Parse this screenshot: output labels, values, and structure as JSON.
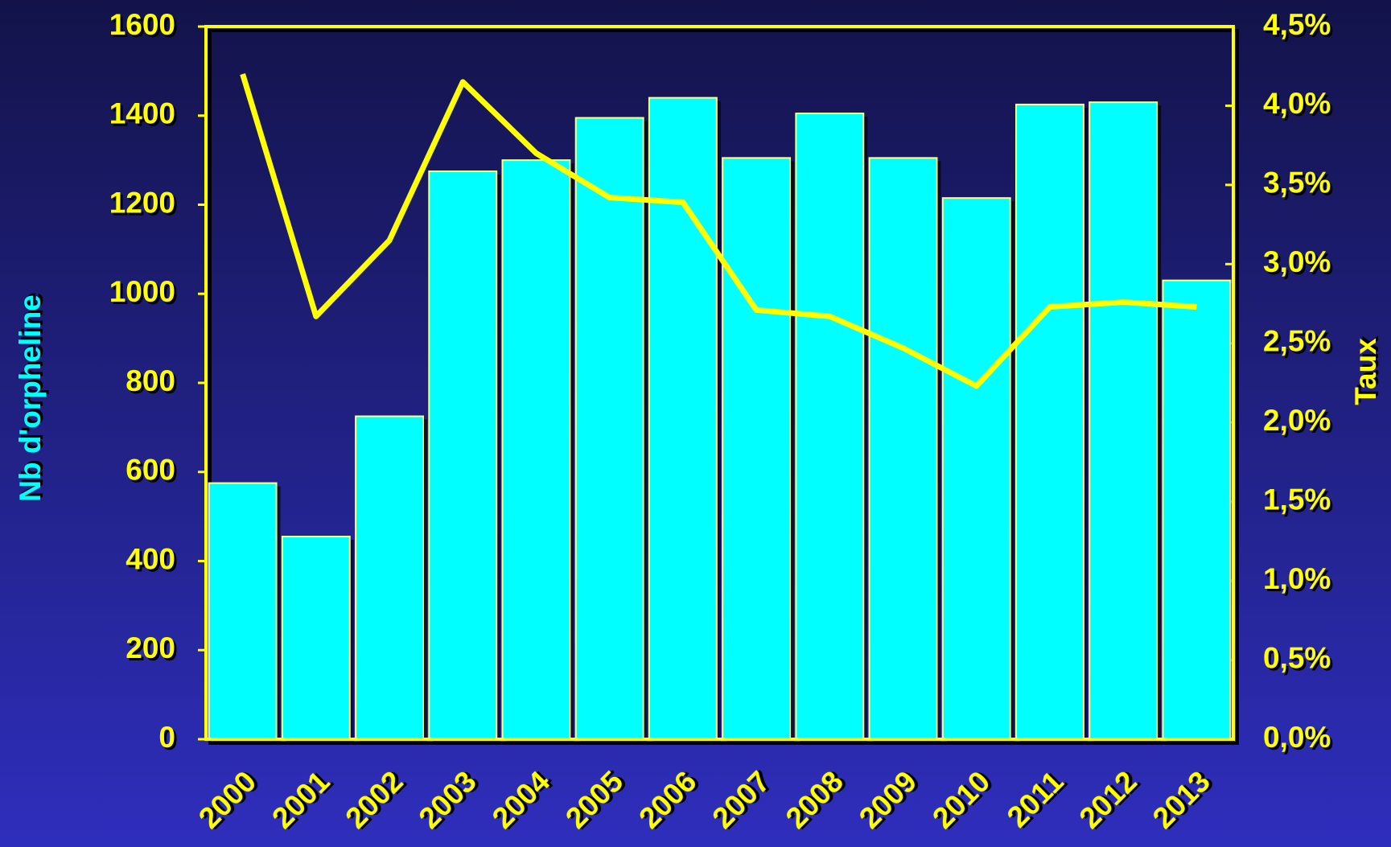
{
  "chart_data": {
    "type": "bar",
    "ylabel": "Nb d'orpheline",
    "y2label": "Taux",
    "categories": [
      "2000",
      "2001",
      "2002",
      "2003",
      "2004",
      "2005",
      "2006",
      "2007",
      "2008",
      "2009",
      "2010",
      "2011",
      "2012",
      "2013"
    ],
    "series": [
      {
        "name": "Nb d'orpheline",
        "type": "bar",
        "color": "#00ffff",
        "values": [
          575,
          455,
          725,
          1275,
          1300,
          1395,
          1440,
          1305,
          1405,
          1305,
          1215,
          1425,
          1430,
          1030
        ]
      },
      {
        "name": "Taux",
        "type": "line",
        "axis": "y2",
        "color": "#ffff00",
        "values": [
          4.2,
          2.67,
          3.15,
          4.15,
          3.7,
          3.42,
          3.39,
          2.71,
          2.67,
          2.47,
          2.23,
          2.73,
          2.76,
          2.73
        ]
      }
    ],
    "ylim": [
      0,
      1600
    ],
    "yticks": [
      0,
      200,
      400,
      600,
      800,
      1000,
      1200,
      1400,
      1600
    ],
    "y2lim": [
      0,
      4.5
    ],
    "y2ticks": [
      {
        "value": 0,
        "label": "0,0%"
      },
      {
        "value": 0.5,
        "label": "0,5%"
      },
      {
        "value": 1,
        "label": "1,0%"
      },
      {
        "value": 1.5,
        "label": "1,5%"
      },
      {
        "value": 2,
        "label": "2,0%"
      },
      {
        "value": 2.5,
        "label": "2,5%"
      },
      {
        "value": 3,
        "label": "3,0%"
      },
      {
        "value": 3.5,
        "label": "3,5%"
      },
      {
        "value": 4,
        "label": "4,0%"
      },
      {
        "value": 4.5,
        "label": "4,5%"
      }
    ]
  }
}
